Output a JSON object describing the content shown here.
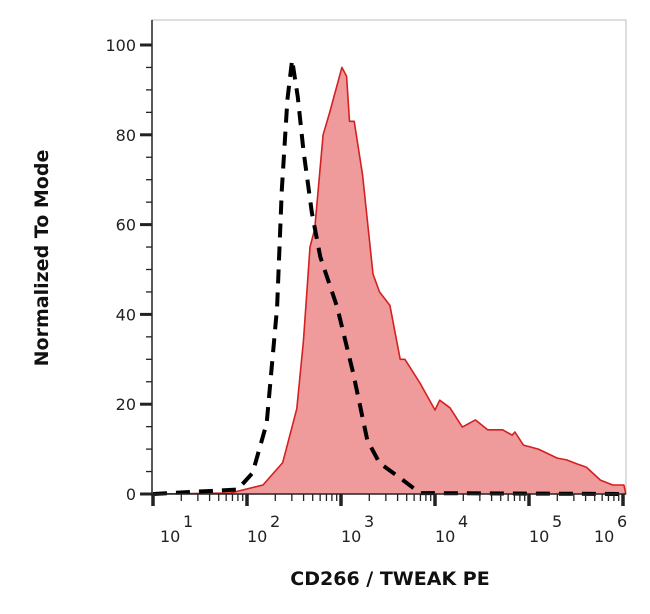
{
  "chart_data": {
    "type": "area",
    "title": "",
    "xlabel": "CD266 / TWEAK PE",
    "ylabel": "Normalized To Mode",
    "x_scale": "log10",
    "xlim_log10": [
      1,
      6.03
    ],
    "ylim": [
      0,
      105
    ],
    "x_ticks": [
      {
        "base": "10",
        "exp": "1"
      },
      {
        "base": "10",
        "exp": "2"
      },
      {
        "base": "10",
        "exp": "3"
      },
      {
        "base": "10",
        "exp": "4"
      },
      {
        "base": "10",
        "exp": "5"
      },
      {
        "base": "10",
        "exp": "6"
      }
    ],
    "y_ticks": [
      "0",
      "20",
      "40",
      "60",
      "80",
      "100"
    ],
    "grid": false,
    "legend": "none",
    "series": [
      {
        "style": "filled",
        "fill_color": "#f09b9b",
        "line_color": "#d42020",
        "points_log10x_y": [
          [
            1.0,
            0
          ],
          [
            1.82,
            0.2
          ],
          [
            2.17,
            2
          ],
          [
            2.38,
            7
          ],
          [
            2.53,
            19
          ],
          [
            2.6,
            34
          ],
          [
            2.67,
            55
          ],
          [
            2.72,
            59
          ],
          [
            2.81,
            80
          ],
          [
            2.88,
            85
          ],
          [
            3.01,
            95
          ],
          [
            3.06,
            93
          ],
          [
            3.09,
            83
          ],
          [
            3.14,
            83
          ],
          [
            3.23,
            71
          ],
          [
            3.34,
            49
          ],
          [
            3.41,
            45
          ],
          [
            3.52,
            42
          ],
          [
            3.63,
            30
          ],
          [
            3.68,
            30
          ],
          [
            3.84,
            24.7
          ],
          [
            4.0,
            18.7
          ],
          [
            4.05,
            20.9
          ],
          [
            4.16,
            19.2
          ],
          [
            4.29,
            14.9
          ],
          [
            4.43,
            16.5
          ],
          [
            4.56,
            14.3
          ],
          [
            4.72,
            14.3
          ],
          [
            4.82,
            13.1
          ],
          [
            4.85,
            13.8
          ],
          [
            4.94,
            10.9
          ],
          [
            5.1,
            10.0
          ],
          [
            5.3,
            8.0
          ],
          [
            5.4,
            7.6
          ],
          [
            5.51,
            6.7
          ],
          [
            5.61,
            6.0
          ],
          [
            5.76,
            3.1
          ],
          [
            5.89,
            2.0
          ],
          [
            6.01,
            2.0
          ],
          [
            6.03,
            0
          ]
        ]
      },
      {
        "style": "dashed",
        "line_color": "#000000",
        "points_log10x_y": [
          [
            1.0,
            0
          ],
          [
            1.9,
            1
          ],
          [
            2.06,
            4.7
          ],
          [
            2.21,
            15.8
          ],
          [
            2.32,
            41.6
          ],
          [
            2.37,
            67.7
          ],
          [
            2.43,
            87.8
          ],
          [
            2.48,
            96.7
          ],
          [
            2.54,
            88.4
          ],
          [
            2.6,
            76.6
          ],
          [
            2.69,
            62.6
          ],
          [
            2.78,
            52.8
          ],
          [
            2.96,
            41.6
          ],
          [
            3.13,
            26.9
          ],
          [
            3.28,
            12.0
          ],
          [
            3.41,
            6.9
          ],
          [
            3.66,
            3.1
          ],
          [
            3.84,
            0.2
          ],
          [
            6.03,
            0
          ]
        ]
      }
    ]
  }
}
